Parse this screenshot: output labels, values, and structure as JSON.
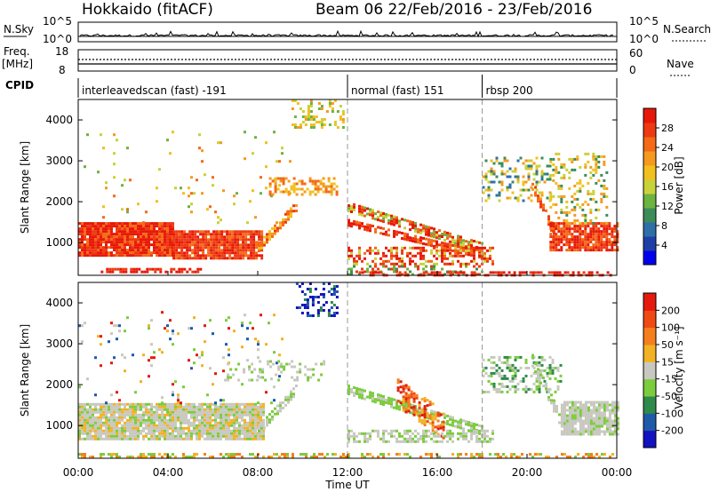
{
  "header": {
    "radar": "Hokkaido (fitACF)",
    "beam_text": "Beam 06  22/Feb/2016 - 23/Feb/2016"
  },
  "strips": {
    "nsky_label": "N.Sky",
    "nsearch_label": "N.Search",
    "nsky_ticks": [
      "10^5",
      "10^0"
    ],
    "freq_label_1": "Freq.",
    "freq_label_2": "[MHz]",
    "freq_ticks": [
      "18",
      "8"
    ],
    "nave_label": "Nave",
    "nave_ticks": [
      "60",
      "0"
    ],
    "cpid_label": "CPID"
  },
  "chart_data": [
    {
      "type": "cpid-segments",
      "segments": [
        {
          "label": "interleavedscan (fast) -191",
          "start_hour": 0,
          "end_hour": 12
        },
        {
          "label": "normal (fast) 151",
          "start_hour": 12,
          "end_hour": 18
        },
        {
          "label": "rbsp 200",
          "start_hour": 18,
          "end_hour": 24
        }
      ]
    },
    {
      "type": "heatmap",
      "name": "power",
      "ylabel": "Slant Range [km]",
      "ylim": [
        200,
        4500
      ],
      "yticks": [
        1000,
        2000,
        3000,
        4000
      ],
      "xlim": [
        0,
        24
      ],
      "colorbar_label": "Power [dB]",
      "colorbar_ticks": [
        "28",
        "24",
        "20",
        "16",
        "12",
        "8",
        "4"
      ],
      "colorscale": [
        "#0000ee",
        "#1f3fa8",
        "#2f6fa8",
        "#3c8c5a",
        "#6db33f",
        "#c8d23a",
        "#f2c01e",
        "#f59a1e",
        "#f46a18",
        "#ee3a12",
        "#e81808"
      ]
    },
    {
      "type": "heatmap",
      "name": "velocity",
      "ylabel": "Slant Range [km]",
      "ylim": [
        200,
        4500
      ],
      "yticks": [
        1000,
        2000,
        3000,
        4000
      ],
      "xlim": [
        0,
        24
      ],
      "xticks": [
        "00:00",
        "04:00",
        "08:00",
        "12:00",
        "16:00",
        "20:00",
        "00:00"
      ],
      "xlabel": "Time UT",
      "colorbar_label": "Velocity [m s⁻¹]",
      "colorbar_ticks": [
        "200",
        "100",
        "50",
        "15",
        "-15",
        "-50",
        "-100",
        "-200"
      ],
      "colorscale": [
        "#1212c0",
        "#1e5aa8",
        "#2e8a4a",
        "#7ccc3e",
        "#c8c8c0",
        "#f2b224",
        "#f57f1c",
        "#ef4a14",
        "#e41a0c"
      ]
    }
  ]
}
